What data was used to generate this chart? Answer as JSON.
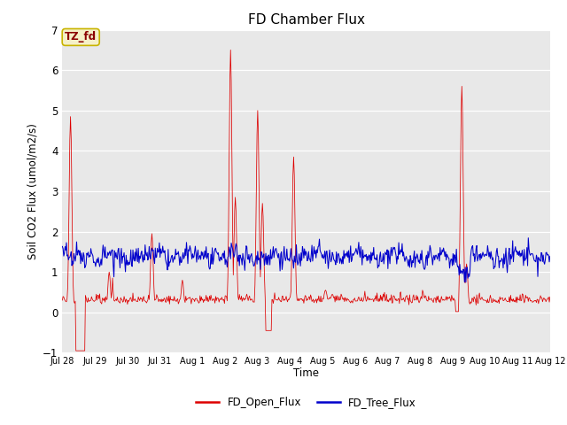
{
  "title": "FD Chamber Flux",
  "ylabel": "Soil CO2 Flux (umol/m2/s)",
  "xlabel": "Time",
  "annotation_text": "TZ_fd",
  "annotation_bg": "#f5f0c8",
  "annotation_text_color": "#8b0000",
  "annotation_edge_color": "#c8b400",
  "ylim": [
    -1.0,
    7.0
  ],
  "yticks": [
    -1.0,
    0.0,
    1.0,
    2.0,
    3.0,
    4.0,
    5.0,
    6.0,
    7.0
  ],
  "red_color": "#dd0000",
  "blue_color": "#0000cc",
  "bg_color": "#e8e8e8",
  "legend_labels": [
    "FD_Open_Flux",
    "FD_Tree_Flux"
  ],
  "xtick_labels": [
    "Jul 28",
    "Jul 29",
    "Jul 30",
    "Jul 31",
    "Aug 1",
    "Aug 2",
    "Aug 3",
    "Aug 4",
    "Aug 5",
    "Aug 6",
    "Aug 7",
    "Aug 8",
    "Aug 9",
    "Aug 10",
    "Aug 11",
    "Aug 12"
  ],
  "seed": 42,
  "n_days": 15,
  "pts_per_day": 48
}
